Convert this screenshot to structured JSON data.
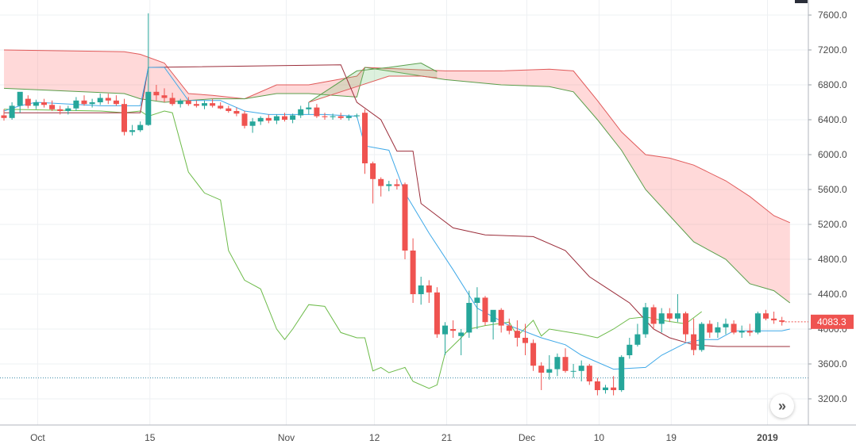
{
  "chart_data": {
    "type": "candlestick",
    "indicator": "Ichimoku Cloud",
    "ylim": [
      3000,
      7800
    ],
    "y_ticks": [
      "3200.0",
      "3600.0",
      "4000.0",
      "4400.0",
      "4800.0",
      "5200.0",
      "5600.0",
      "6000.0",
      "6400.0",
      "6800.0",
      "7200.0",
      "7600.0"
    ],
    "x_ticks": [
      {
        "label": "Oct",
        "bar": 4
      },
      {
        "label": "15",
        "bar": 18
      },
      {
        "label": "Nov",
        "bar": 35
      },
      {
        "label": "12",
        "bar": 46
      },
      {
        "label": "21",
        "bar": 55
      },
      {
        "label": "Dec",
        "bar": 65
      },
      {
        "label": "10",
        "bar": 74
      },
      {
        "label": "19",
        "bar": 83
      },
      {
        "label": "2019",
        "bar": 95
      }
    ],
    "last_price": "4083.3",
    "dotted_level": 3440,
    "candles": [
      [
        6450,
        6520,
        6390,
        6420
      ],
      [
        6420,
        6600,
        6400,
        6560
      ],
      [
        6560,
        6700,
        6480,
        6720
      ],
      [
        6640,
        6680,
        6530,
        6560
      ],
      [
        6560,
        6630,
        6520,
        6600
      ],
      [
        6600,
        6640,
        6540,
        6570
      ],
      [
        6570,
        6620,
        6500,
        6520
      ],
      [
        6520,
        6560,
        6460,
        6500
      ],
      [
        6500,
        6560,
        6460,
        6530
      ],
      [
        6530,
        6660,
        6500,
        6620
      ],
      [
        6620,
        6680,
        6560,
        6580
      ],
      [
        6580,
        6640,
        6540,
        6600
      ],
      [
        6600,
        6700,
        6570,
        6650
      ],
      [
        6650,
        6700,
        6580,
        6620
      ],
      [
        6620,
        6680,
        6560,
        6580
      ],
      [
        6580,
        6640,
        6220,
        6260
      ],
      [
        6260,
        6340,
        6220,
        6280
      ],
      [
        6280,
        6380,
        6260,
        6340
      ],
      [
        6340,
        7620,
        6330,
        6720
      ],
      [
        6720,
        6800,
        6620,
        6680
      ],
      [
        6680,
        6760,
        6600,
        6650
      ],
      [
        6650,
        6710,
        6560,
        6580
      ],
      [
        6580,
        6640,
        6540,
        6620
      ],
      [
        6620,
        6660,
        6560,
        6580
      ],
      [
        6580,
        6620,
        6540,
        6560
      ],
      [
        6560,
        6620,
        6520,
        6590
      ],
      [
        6590,
        6640,
        6540,
        6560
      ],
      [
        6560,
        6600,
        6520,
        6530
      ],
      [
        6530,
        6560,
        6480,
        6500
      ],
      [
        6500,
        6540,
        6440,
        6470
      ],
      [
        6470,
        6500,
        6300,
        6330
      ],
      [
        6330,
        6420,
        6250,
        6380
      ],
      [
        6380,
        6440,
        6340,
        6420
      ],
      [
        6420,
        6460,
        6360,
        6390
      ],
      [
        6390,
        6460,
        6350,
        6440
      ],
      [
        6440,
        6480,
        6380,
        6400
      ],
      [
        6400,
        6470,
        6360,
        6450
      ],
      [
        6450,
        6560,
        6420,
        6520
      ],
      [
        6520,
        6600,
        6460,
        6540
      ],
      [
        6540,
        6580,
        6420,
        6440
      ],
      [
        6440,
        6480,
        6400,
        6430
      ],
      [
        6430,
        6470,
        6400,
        6440
      ],
      [
        6440,
        6480,
        6400,
        6420
      ],
      [
        6420,
        6460,
        6390,
        6440
      ],
      [
        6440,
        6470,
        6420,
        6450
      ],
      [
        6480,
        6520,
        5780,
        5900
      ],
      [
        5900,
        5920,
        5440,
        5720
      ],
      [
        5720,
        5740,
        5520,
        5640
      ],
      [
        5640,
        5700,
        5580,
        5660
      ],
      [
        5660,
        5720,
        5600,
        5640
      ],
      [
        5660,
        5680,
        4800,
        4900
      ],
      [
        4900,
        5040,
        4300,
        4400
      ],
      [
        4400,
        4600,
        4280,
        4500
      ],
      [
        4500,
        4560,
        4300,
        4420
      ],
      [
        4420,
        4480,
        3900,
        3940
      ],
      [
        3940,
        4080,
        3700,
        4040
      ],
      [
        4000,
        4100,
        3900,
        3980
      ],
      [
        3920,
        4000,
        3700,
        3960
      ],
      [
        3960,
        4440,
        3900,
        4300
      ],
      [
        4300,
        4480,
        4000,
        4360
      ],
      [
        4360,
        4380,
        4040,
        4080
      ],
      [
        4080,
        4200,
        3880,
        4220
      ],
      [
        4220,
        4240,
        3960,
        4040
      ],
      [
        4040,
        4120,
        3940,
        3980
      ],
      [
        3980,
        4100,
        3800,
        3900
      ],
      [
        3900,
        4060,
        3700,
        3840
      ],
      [
        3840,
        3880,
        3520,
        3580
      ],
      [
        3580,
        3620,
        3300,
        3500
      ],
      [
        3500,
        3700,
        3420,
        3540
      ],
      [
        3540,
        3720,
        3460,
        3680
      ],
      [
        3680,
        3780,
        3500,
        3520
      ],
      [
        3520,
        3600,
        3440,
        3520
      ],
      [
        3520,
        3640,
        3400,
        3580
      ],
      [
        3580,
        3600,
        3360,
        3400
      ],
      [
        3400,
        3440,
        3240,
        3300
      ],
      [
        3300,
        3360,
        3260,
        3330
      ],
      [
        3330,
        3460,
        3240,
        3300
      ],
      [
        3300,
        3700,
        3280,
        3680
      ],
      [
        3700,
        3900,
        3660,
        3820
      ],
      [
        3820,
        4060,
        3800,
        3940
      ],
      [
        3940,
        4300,
        3900,
        4250
      ],
      [
        4250,
        4280,
        4000,
        4060
      ],
      [
        4060,
        4240,
        3960,
        4180
      ],
      [
        4180,
        4240,
        4080,
        4120
      ],
      [
        4120,
        4400,
        4080,
        4180
      ],
      [
        4180,
        4200,
        3860,
        3940
      ],
      [
        3940,
        4120,
        3700,
        3760
      ],
      [
        3760,
        4080,
        3740,
        4060
      ],
      [
        4060,
        4100,
        3900,
        3960
      ],
      [
        3960,
        4080,
        3900,
        4020
      ],
      [
        4020,
        4120,
        3940,
        4060
      ],
      [
        4060,
        4100,
        3940,
        3960
      ],
      [
        3960,
        4040,
        3900,
        3980
      ],
      [
        3980,
        4060,
        3920,
        3960
      ],
      [
        3960,
        4200,
        3940,
        4180
      ],
      [
        4180,
        4220,
        4100,
        4120
      ],
      [
        4120,
        4200,
        4060,
        4100
      ],
      [
        4100,
        4140,
        4040,
        4083.3
      ]
    ],
    "tenkan": [
      [
        0,
        6500
      ],
      [
        2,
        6560
      ],
      [
        4,
        6600
      ],
      [
        12,
        6560
      ],
      [
        17,
        6560
      ],
      [
        18,
        7000
      ],
      [
        20,
        7000
      ],
      [
        23,
        6620
      ],
      [
        27,
        6620
      ],
      [
        30,
        6500
      ],
      [
        33,
        6460
      ],
      [
        40,
        6460
      ],
      [
        44,
        6440
      ],
      [
        45,
        6100
      ],
      [
        48,
        6050
      ],
      [
        50,
        5560
      ],
      [
        53,
        5100
      ],
      [
        56,
        4680
      ],
      [
        59,
        4240
      ],
      [
        63,
        4040
      ],
      [
        67,
        3900
      ],
      [
        70,
        3820
      ],
      [
        72,
        3700
      ],
      [
        76,
        3540
      ],
      [
        80,
        3560
      ],
      [
        82,
        3700
      ],
      [
        85,
        3840
      ],
      [
        87,
        3880
      ],
      [
        89,
        3880
      ],
      [
        91,
        3980
      ],
      [
        97,
        3980
      ],
      [
        98,
        4000
      ]
    ],
    "kijun": [
      [
        0,
        6480
      ],
      [
        17,
        6480
      ],
      [
        18,
        7000
      ],
      [
        42,
        7030
      ],
      [
        44,
        6600
      ],
      [
        47,
        6400
      ],
      [
        49,
        6040
      ],
      [
        51,
        6040
      ],
      [
        52,
        5440
      ],
      [
        56,
        5160
      ],
      [
        60,
        5080
      ],
      [
        66,
        5060
      ],
      [
        70,
        4900
      ],
      [
        73,
        4600
      ],
      [
        75,
        4480
      ],
      [
        78,
        4300
      ],
      [
        81,
        4000
      ],
      [
        83,
        3900
      ],
      [
        86,
        3820
      ],
      [
        89,
        3800
      ],
      [
        98,
        3800
      ]
    ],
    "chikou": [
      [
        0,
        6520
      ],
      [
        12,
        6500
      ],
      [
        15,
        6480
      ],
      [
        17,
        6500
      ],
      [
        18,
        6440
      ],
      [
        20,
        6500
      ],
      [
        21,
        6480
      ],
      [
        23,
        5800
      ],
      [
        25,
        5560
      ],
      [
        27,
        5480
      ],
      [
        28,
        4900
      ],
      [
        30,
        4560
      ],
      [
        32,
        4460
      ],
      [
        34,
        4000
      ],
      [
        35,
        3880
      ],
      [
        36,
        4000
      ],
      [
        38,
        4280
      ],
      [
        40,
        4260
      ],
      [
        42,
        3960
      ],
      [
        44,
        3900
      ],
      [
        45,
        3900
      ],
      [
        46,
        3520
      ],
      [
        47,
        3560
      ],
      [
        48,
        3500
      ],
      [
        50,
        3560
      ],
      [
        51,
        3400
      ],
      [
        53,
        3320
      ],
      [
        54,
        3360
      ],
      [
        55,
        3720
      ],
      [
        57,
        3900
      ],
      [
        58,
        4000
      ],
      [
        60,
        4040
      ],
      [
        63,
        4080
      ],
      [
        64,
        3920
      ],
      [
        66,
        4100
      ],
      [
        67,
        3920
      ],
      [
        68,
        4000
      ],
      [
        72,
        3940
      ],
      [
        74,
        3900
      ],
      [
        76,
        4000
      ],
      [
        78,
        4120
      ],
      [
        80,
        4140
      ],
      [
        82,
        4100
      ],
      [
        85,
        4060
      ],
      [
        87,
        4200
      ]
    ],
    "cloud_red": [
      [
        0,
        7200,
        6760
      ],
      [
        15,
        7180,
        6700
      ],
      [
        17,
        7150,
        6640
      ],
      [
        20,
        7050,
        6600
      ],
      [
        23,
        6700,
        6620
      ],
      [
        26,
        6680,
        6640
      ],
      [
        30,
        6640,
        6640
      ],
      [
        34,
        6800,
        6700
      ],
      [
        38,
        6800,
        6700
      ],
      [
        44,
        6900,
        6660
      ],
      [
        45,
        7000,
        7000
      ],
      [
        55,
        6960,
        6860
      ],
      [
        62,
        6960,
        6800
      ],
      [
        68,
        6980,
        6780
      ],
      [
        71,
        6960,
        6720
      ],
      [
        74,
        6620,
        6400
      ],
      [
        77,
        6260,
        6050
      ],
      [
        80,
        6000,
        5600
      ],
      [
        83,
        5960,
        5300
      ],
      [
        86,
        5880,
        5000
      ],
      [
        90,
        5700,
        4800
      ],
      [
        93,
        5520,
        4520
      ],
      [
        96,
        5300,
        4440
      ],
      [
        98,
        5220,
        4300
      ]
    ],
    "cloud_green": [
      [
        38,
        6600,
        6600
      ],
      [
        44,
        6960,
        6780
      ],
      [
        48,
        7000,
        6900
      ],
      [
        52,
        7050,
        6900
      ],
      [
        54,
        6950,
        6880
      ]
    ]
  },
  "ui": {
    "scroll_button_label": "»"
  }
}
